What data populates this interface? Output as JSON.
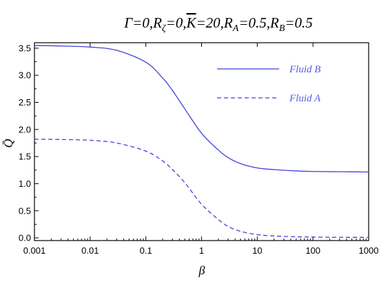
{
  "chart_data": {
    "type": "line",
    "title": "Γ=0, Rζ=0, K̄=20, Rₐ=0.5, Rʙ=0.5",
    "title_parts": {
      "gamma": "Γ",
      "r_zeta": "R",
      "zeta_sub": "ζ",
      "kbar": "K",
      "k_value": "20",
      "ra": "R",
      "ra_sub": "A",
      "ra_value": "0.5",
      "rb": "R",
      "rb_sub": "B",
      "rb_value": "0.5",
      "zero": "0"
    },
    "xlabel": "β",
    "ylabel": "Q̄",
    "x_scale": "log",
    "xlim": [
      0.001,
      1000
    ],
    "ylim": [
      -0.05,
      3.6
    ],
    "x_ticks": [
      "0.001",
      "0.01",
      "0.1",
      "1",
      "10",
      "100",
      "1000"
    ],
    "y_ticks": [
      "0.0",
      "0.5",
      "1.0",
      "1.5",
      "2.0",
      "2.5",
      "3.0",
      "3.5"
    ],
    "grid": false,
    "legend_position": "top-right",
    "series": [
      {
        "name": "Fluid B",
        "style": "solid",
        "color": "#4040d8",
        "x": [
          0.001,
          0.003,
          0.01,
          0.03,
          0.1,
          0.2,
          0.3,
          0.5,
          1,
          2,
          3,
          5,
          10,
          20,
          50,
          100,
          300,
          1000
        ],
        "y": [
          3.55,
          3.54,
          3.52,
          3.46,
          3.24,
          2.95,
          2.72,
          2.38,
          1.93,
          1.62,
          1.48,
          1.37,
          1.29,
          1.26,
          1.235,
          1.225,
          1.22,
          1.215
        ]
      },
      {
        "name": "Fluid A",
        "style": "dashed",
        "color": "#4040d8",
        "x": [
          0.001,
          0.003,
          0.01,
          0.03,
          0.1,
          0.2,
          0.3,
          0.5,
          1,
          2,
          3,
          5,
          10,
          20,
          50,
          100,
          300,
          1000
        ],
        "y": [
          1.82,
          1.815,
          1.8,
          1.75,
          1.6,
          1.42,
          1.26,
          1.02,
          0.62,
          0.34,
          0.21,
          0.12,
          0.06,
          0.035,
          0.02,
          0.015,
          0.01,
          0.01
        ]
      }
    ]
  }
}
